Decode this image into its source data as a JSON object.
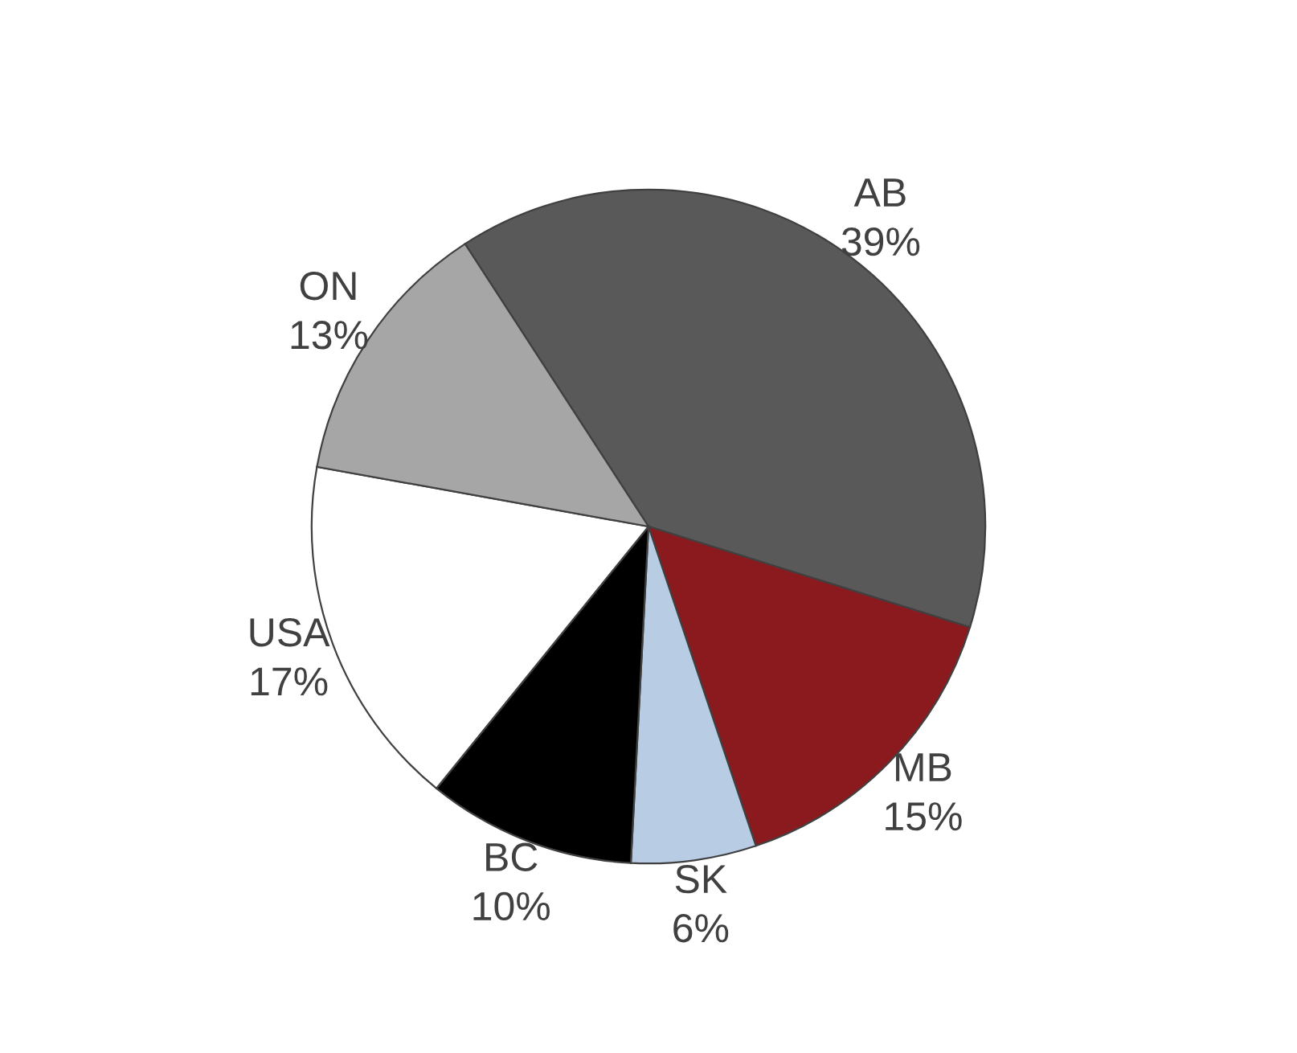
{
  "chart_data": {
    "type": "pie",
    "categories": [
      "AB",
      "MB",
      "SK",
      "BC",
      "USA",
      "ON"
    ],
    "values": [
      39,
      15,
      6,
      10,
      17,
      13
    ],
    "value_labels": [
      "39%",
      "15%",
      "6%",
      "10%",
      "17%",
      "13%"
    ],
    "colors": [
      "#595959",
      "#8b1a1f",
      "#b8cce4",
      "#000000",
      "#ffffff",
      "#a6a6a6"
    ]
  }
}
